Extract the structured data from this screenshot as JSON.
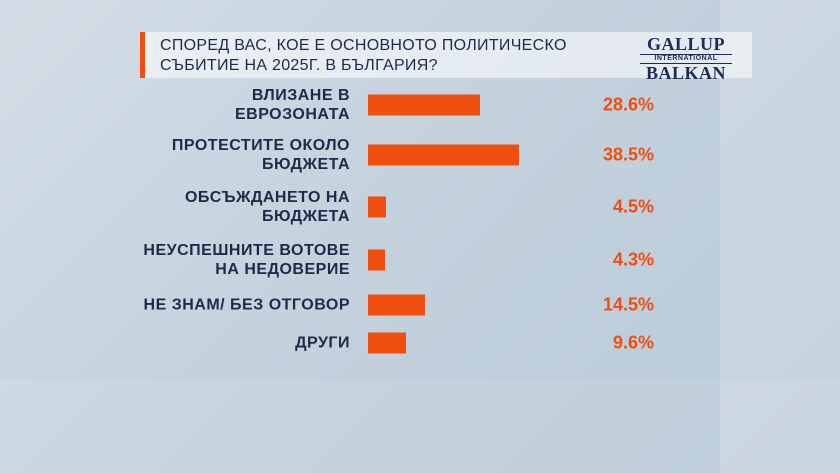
{
  "chart_data": {
    "type": "bar",
    "orientation": "horizontal",
    "title": "СПОРЕД ВАС, КОЕ Е ОСНОВНОТО ПОЛИТИЧЕСКО\nСЪБИТИЕ НА 2025Г. В БЪЛГАРИЯ?",
    "logo": {
      "top": "GALLUP",
      "middle": "INTERNATIONAL",
      "bottom": "BALKAN"
    },
    "categories": [
      "ВЛИЗАНЕ В\nЕВРОЗОНАТА",
      "ПРОТЕСТИТЕ ОКОЛО\nБЮДЖЕТА",
      "ОБСЪЖДАНЕТО НА\nБЮДЖЕТА",
      "НЕУСПЕШНИТЕ ВОТОВЕ\nНА НЕДОВЕРИЕ",
      "НЕ ЗНАМ/ БЕЗ ОТГОВОР",
      "ДРУГИ"
    ],
    "values": [
      28.6,
      38.5,
      4.5,
      4.3,
      14.5,
      9.6
    ],
    "value_labels": [
      "28.6%",
      "38.5%",
      "4.5%",
      "4.3%",
      "14.5%",
      "9.6%"
    ],
    "color": "#f04e0f"
  }
}
